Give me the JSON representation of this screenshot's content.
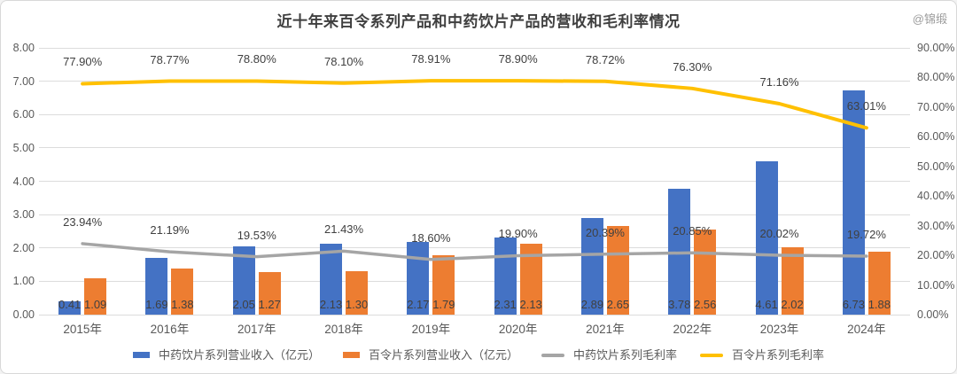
{
  "title": "近十年来百令系列产品和中药饮片产品的营收和毛利率情况",
  "watermark": "@锦缎",
  "chart_data": {
    "type": "combo-bar-line",
    "title": "近十年来百令系列产品和中药饮片产品的营收和毛利率情况",
    "categories": [
      "2015年",
      "2016年",
      "2017年",
      "2018年",
      "2019年",
      "2020年",
      "2021年",
      "2022年",
      "2023年",
      "2024年"
    ],
    "bar_series": [
      {
        "name": "中药饮片系列营业收入（亿元）",
        "color": "#4472C4",
        "axis": "left",
        "values": [
          0.41,
          1.69,
          2.05,
          2.13,
          2.17,
          2.31,
          2.89,
          3.78,
          4.61,
          6.73
        ],
        "labels": [
          "0.41",
          "1.69",
          "2.05",
          "2.13",
          "2.17",
          "2.31",
          "2.89",
          "3.78",
          "4.61",
          "6.73"
        ]
      },
      {
        "name": "百令片系列营业收入（亿元）",
        "color": "#ED7D31",
        "axis": "left",
        "values": [
          1.09,
          1.38,
          1.27,
          1.3,
          1.79,
          2.13,
          2.65,
          2.56,
          2.02,
          1.88
        ],
        "labels": [
          "1.09",
          "1.38",
          "1.27",
          "1.30",
          "1.79",
          "2.13",
          "2.65",
          "2.56",
          "2.02",
          "1.88"
        ]
      }
    ],
    "line_series": [
      {
        "name": "中药饮片系列毛利率",
        "color": "#A5A5A5",
        "axis": "right",
        "values": [
          23.94,
          21.19,
          19.53,
          21.43,
          18.6,
          19.9,
          20.39,
          20.85,
          20.02,
          19.72
        ],
        "labels": [
          "23.94%",
          "21.19%",
          "19.53%",
          "21.43%",
          "18.60%",
          "19.90%",
          "20.39%",
          "20.85%",
          "20.02%",
          "19.72%"
        ]
      },
      {
        "name": "百令片系列毛利率",
        "color": "#FFC000",
        "axis": "right",
        "values": [
          77.9,
          78.77,
          78.8,
          78.1,
          78.91,
          78.9,
          78.72,
          76.3,
          71.16,
          63.01
        ],
        "labels": [
          "77.90%",
          "78.77%",
          "78.80%",
          "78.10%",
          "78.91%",
          "78.90%",
          "78.72%",
          "76.30%",
          "71.16%",
          "63.01%"
        ]
      }
    ],
    "left_axis": {
      "min": 0,
      "max": 8,
      "ticks": [
        "0.00",
        "1.00",
        "2.00",
        "3.00",
        "4.00",
        "5.00",
        "6.00",
        "7.00",
        "8.00"
      ]
    },
    "right_axis": {
      "min": 0,
      "max": 90,
      "ticks": [
        "0.00%",
        "10.00%",
        "20.00%",
        "30.00%",
        "40.00%",
        "50.00%",
        "60.00%",
        "70.00%",
        "80.00%",
        "90.00%"
      ]
    },
    "grid": true,
    "legend_position": "bottom",
    "legend": [
      "中药饮片系列营业收入（亿元）",
      "百令片系列营业收入（亿元）",
      "中药饮片系列毛利率",
      "百令片系列毛利率"
    ]
  }
}
